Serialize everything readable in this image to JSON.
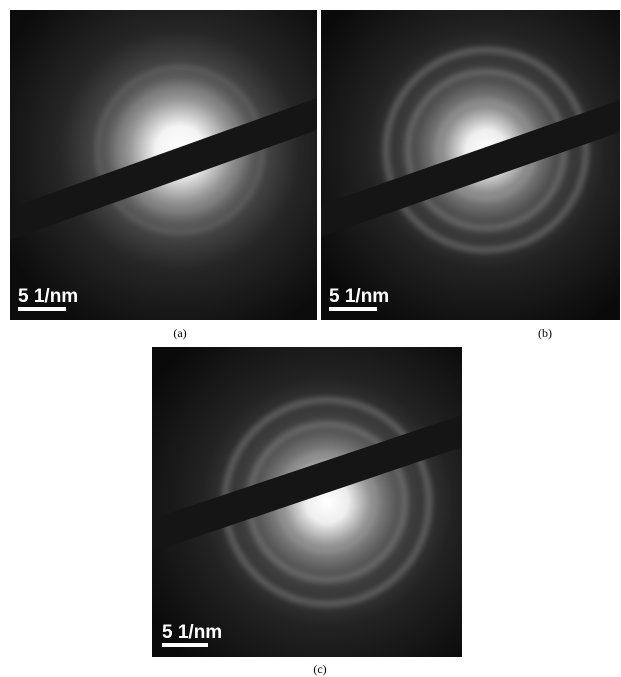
{
  "panels": [
    {
      "scale_bar_label": "5 1/nm",
      "caption": "(a)"
    },
    {
      "scale_bar_label": "5 1/nm",
      "caption": "(b)"
    },
    {
      "scale_bar_label": "5 1/nm",
      "caption": "(c)"
    }
  ]
}
